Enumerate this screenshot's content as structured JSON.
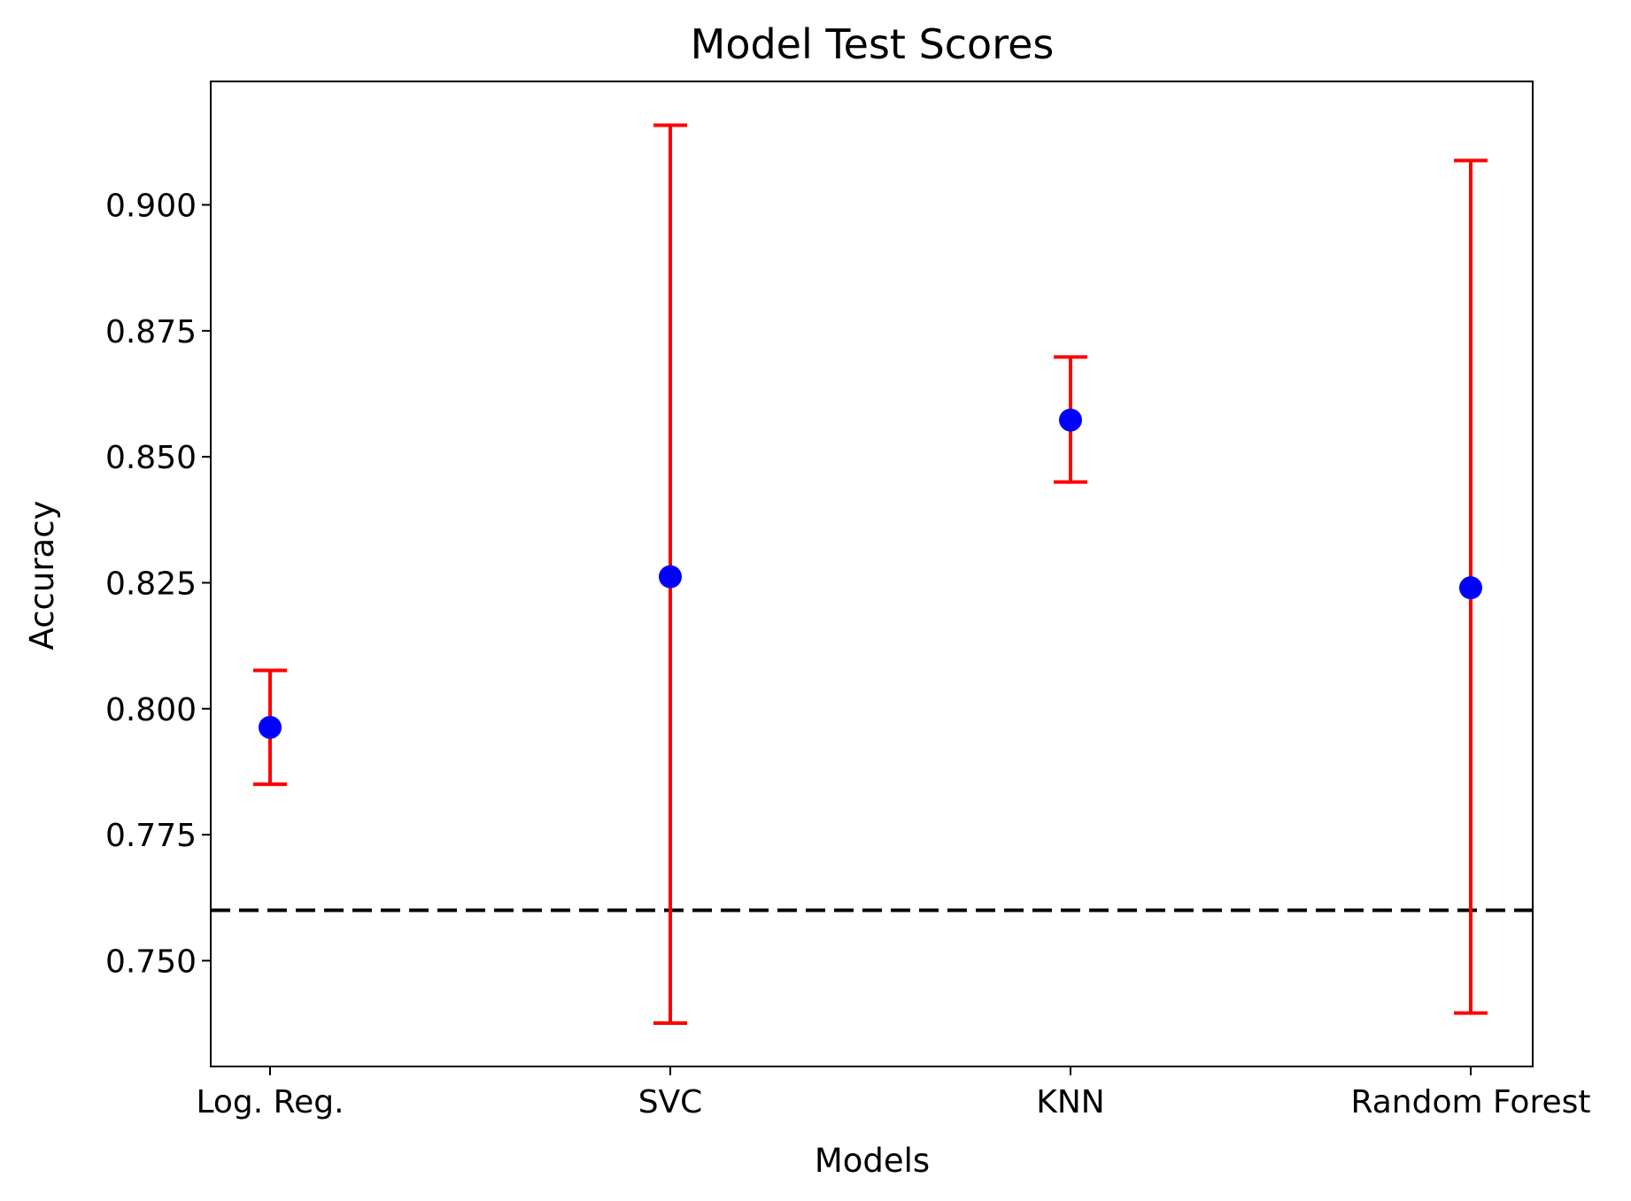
{
  "chart_data": {
    "type": "scatter",
    "title": "Model Test Scores",
    "xlabel": "Models",
    "ylabel": "Accuracy",
    "categories": [
      "Log. Reg.",
      "SVC",
      "KNN",
      "Random Forest"
    ],
    "series": [
      {
        "values": [
          0.7963,
          0.8262,
          0.8573,
          0.824
        ],
        "error_low": [
          0.785,
          0.7376,
          0.845,
          0.7396
        ],
        "error_high": [
          0.8076,
          0.9158,
          0.8698,
          0.9088
        ],
        "marker_color": "#0000ff",
        "error_color": "#ff0000"
      }
    ],
    "reference_line": {
      "y": 0.76,
      "style": "dashed",
      "color": "#000000"
    },
    "ylim": [
      0.729,
      0.9245
    ],
    "yticks": [
      0.75,
      0.775,
      0.8,
      0.825,
      0.85,
      0.875,
      0.9
    ],
    "ytick_labels": [
      "0.750",
      "0.775",
      "0.800",
      "0.825",
      "0.850",
      "0.875",
      "0.900"
    ],
    "grid": false,
    "legend": "none"
  }
}
